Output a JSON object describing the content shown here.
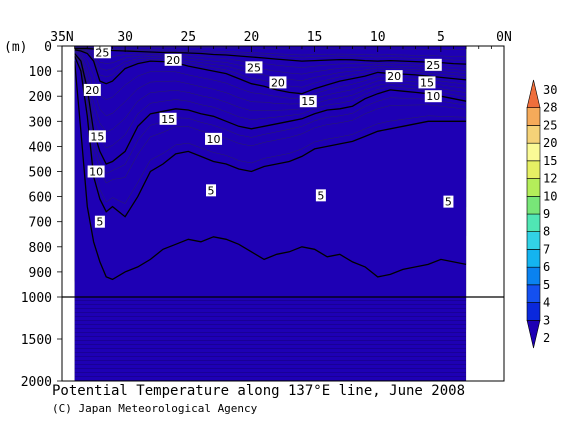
{
  "chart_data": {
    "type": "heatmap",
    "title": "Potential Temperature along 137°E line, June 2008",
    "credit": "(C) Japan Meteorological Agency",
    "y_unit_label": "(m)",
    "x_tick_labels": [
      "35N",
      "30",
      "25",
      "20",
      "15",
      "10",
      "5",
      "0N"
    ],
    "x_ticks": [
      35,
      30,
      25,
      20,
      15,
      10,
      5,
      0
    ],
    "x_range": [
      35,
      0
    ],
    "y_tick_labels": [
      "0",
      "100",
      "200",
      "300",
      "400",
      "500",
      "600",
      "700",
      "800",
      "900",
      "1000",
      "1500",
      "2000"
    ],
    "y_ticks": [
      0,
      100,
      200,
      300,
      400,
      500,
      600,
      700,
      800,
      900,
      1000,
      1500,
      2000
    ],
    "y_range": [
      0,
      2000
    ],
    "y_scale_break": 1000,
    "section_latitude_range": [
      34,
      3
    ],
    "colorbar": {
      "levels": [
        2,
        3,
        4,
        5,
        6,
        7,
        8,
        9,
        10,
        12,
        15,
        20,
        25,
        28,
        30
      ],
      "level_labels": [
        "2",
        "3",
        "4",
        "5",
        "6",
        "7",
        "8",
        "9",
        "10",
        "12",
        "15",
        "20",
        "25",
        "28",
        "30"
      ],
      "colors": [
        "#1e00b4",
        "#0a28dc",
        "#1450f0",
        "#0a82f0",
        "#14b4f0",
        "#32d2e6",
        "#50e6b4",
        "#78e678",
        "#b4ee5a",
        "#e6f064",
        "#fafa96",
        "#f5d278",
        "#f5aa5a",
        "#ee6e3c"
      ]
    },
    "profile_latitudes": [
      34,
      33.5,
      33,
      32.5,
      32,
      31.5,
      31,
      30,
      29,
      28,
      27,
      26,
      25,
      24,
      23,
      22,
      21,
      20,
      19,
      18,
      17,
      16,
      15,
      14,
      13,
      12,
      11,
      10,
      9,
      8,
      7,
      6,
      5,
      4,
      3
    ],
    "isotherms": [
      {
        "temp": 25,
        "depths": [
          10,
          10,
          10,
          12,
          14,
          16,
          18,
          20,
          22,
          24,
          26,
          26,
          28,
          30,
          34,
          36,
          40,
          44,
          48,
          52,
          56,
          60,
          58,
          56,
          54,
          55,
          58,
          60,
          58,
          60,
          62,
          64,
          66,
          70,
          72
        ]
      },
      {
        "temp": 20,
        "depths": [
          15,
          20,
          30,
          60,
          140,
          150,
          140,
          90,
          70,
          60,
          62,
          66,
          80,
          90,
          100,
          110,
          130,
          150,
          160,
          175,
          185,
          190,
          170,
          155,
          140,
          130,
          120,
          105,
          110,
          112,
          115,
          120,
          125,
          130,
          135
        ]
      },
      {
        "temp": 15,
        "depths": [
          30,
          60,
          170,
          340,
          420,
          470,
          460,
          420,
          320,
          270,
          260,
          250,
          255,
          270,
          280,
          300,
          320,
          330,
          320,
          310,
          300,
          290,
          270,
          255,
          250,
          240,
          210,
          190,
          175,
          180,
          185,
          190,
          200,
          210,
          220
        ]
      },
      {
        "temp": 10,
        "depths": [
          40,
          100,
          280,
          520,
          610,
          660,
          640,
          680,
          600,
          500,
          470,
          430,
          420,
          440,
          460,
          470,
          490,
          500,
          480,
          470,
          460,
          440,
          410,
          400,
          390,
          380,
          360,
          340,
          330,
          320,
          310,
          300,
          300,
          300,
          300
        ]
      },
      {
        "temp": 5,
        "depths": [
          60,
          340,
          640,
          780,
          860,
          920,
          930,
          900,
          880,
          850,
          810,
          790,
          770,
          780,
          760,
          770,
          790,
          820,
          850,
          830,
          820,
          800,
          810,
          840,
          830,
          860,
          880,
          920,
          910,
          890,
          880,
          870,
          850,
          860,
          870
        ]
      }
    ],
    "contour_labels": [
      {
        "text": "25",
        "lat": 31.8,
        "depth": 25
      },
      {
        "text": "20",
        "lat": 26.2,
        "depth": 55
      },
      {
        "text": "25",
        "lat": 19.8,
        "depth": 85
      },
      {
        "text": "20",
        "lat": 17.9,
        "depth": 145
      },
      {
        "text": "25",
        "lat": 5.6,
        "depth": 75
      },
      {
        "text": "20",
        "lat": 8.7,
        "depth": 120
      },
      {
        "text": "15",
        "lat": 6.1,
        "depth": 145
      },
      {
        "text": "20",
        "lat": 32.6,
        "depth": 175
      },
      {
        "text": "15",
        "lat": 15.5,
        "depth": 220
      },
      {
        "text": "10",
        "lat": 5.6,
        "depth": 200
      },
      {
        "text": "15",
        "lat": 26.6,
        "depth": 290
      },
      {
        "text": "15",
        "lat": 32.2,
        "depth": 360
      },
      {
        "text": "10",
        "lat": 23.0,
        "depth": 370
      },
      {
        "text": "10",
        "lat": 32.3,
        "depth": 500
      },
      {
        "text": "5",
        "lat": 23.2,
        "depth": 575
      },
      {
        "text": "5",
        "lat": 14.5,
        "depth": 595
      },
      {
        "text": "5",
        "lat": 4.4,
        "depth": 620
      },
      {
        "text": "5",
        "lat": 32.0,
        "depth": 700
      }
    ],
    "grid": false,
    "legend": "colorbar-right"
  }
}
